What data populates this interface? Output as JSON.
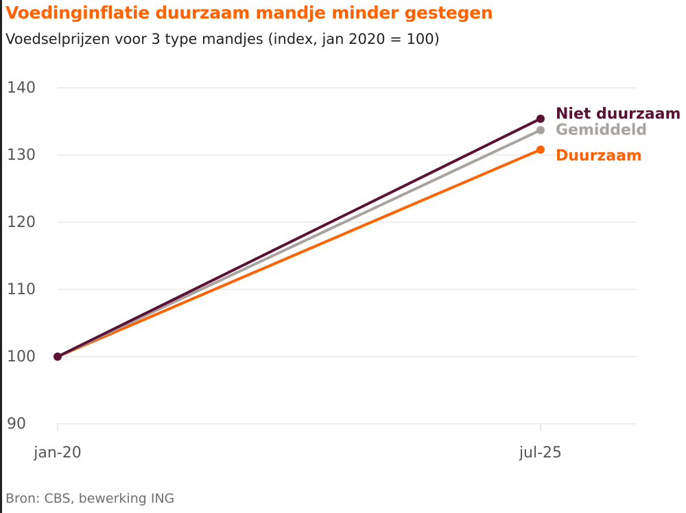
{
  "title": "Voedinginflatie duurzaam mandje minder gestegen",
  "subtitle": "Voedselprijzen voor 3 type mandjes (index, jan 2020 = 100)",
  "source": "Bron: CBS, bewerking ING",
  "chart_data": {
    "type": "line",
    "x": [
      "jan-20",
      "jul-25"
    ],
    "ylim": [
      90,
      140
    ],
    "yticks": [
      90,
      100,
      110,
      120,
      130,
      140
    ],
    "grid": true,
    "legend": "labels at line ends, right",
    "series": [
      {
        "name": "Duurzaam",
        "color": "#ff6200",
        "values": [
          100,
          130.8
        ]
      },
      {
        "name": "Gemiddeld",
        "color": "#a8a39f",
        "values": [
          100,
          133.7
        ]
      },
      {
        "name": "Niet duurzaam",
        "color": "#5a1234",
        "values": [
          100,
          135.4
        ]
      }
    ]
  }
}
